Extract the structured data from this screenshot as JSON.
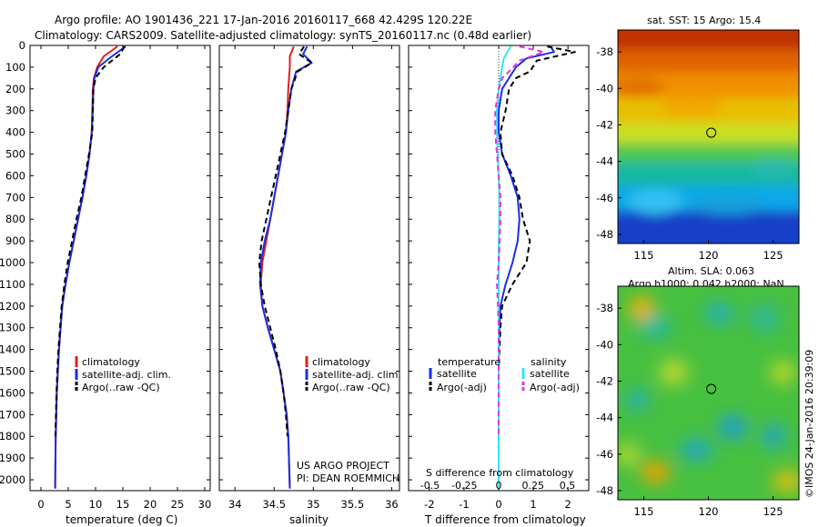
{
  "header": {
    "line1": "Argo profile: AO 1901436_221 17-Jan-2016 20160117_668 42.429S 120.22E",
    "line2": "Climatology: CARS2009. Satellite-adjusted climatology: synTS_20160117.nc (0.48d earlier)"
  },
  "credits": {
    "project": "US ARGO PROJECT",
    "pi": "PI: DEAN ROEMMICH",
    "imos": "©IMOS 24-Jan-2016 20:39:09"
  },
  "colors": {
    "climatology": "#e0201a",
    "satellite": "#1a2ee6",
    "argo": "#000000",
    "satellite_s": "#33e6f0",
    "argo_s": "#e633e0"
  },
  "chart_data": [
    {
      "id": "temperature",
      "type": "line",
      "xlabel": "temperature (deg C)",
      "ylabel": "",
      "xlim": [
        -2,
        31
      ],
      "ylim": [
        2050,
        0
      ],
      "xticks": [
        0,
        5,
        10,
        15,
        20,
        25,
        30
      ],
      "yticks": [
        0,
        100,
        200,
        300,
        400,
        500,
        600,
        700,
        800,
        900,
        1000,
        1100,
        1200,
        1300,
        1400,
        1500,
        1600,
        1700,
        1800,
        1900,
        2000
      ],
      "legend": [
        "climatology",
        "satellite-adj. clim.",
        "Argo(..raw -QC)"
      ],
      "series": [
        {
          "name": "climatology",
          "style": "solid",
          "color": "#e0201a",
          "x": [
            14.0,
            11.5,
            10.3,
            9.7,
            9.5,
            9.4,
            9.3,
            8.9,
            8.3,
            7.6,
            6.8,
            6.0,
            5.2,
            4.5,
            3.9,
            3.6,
            3.3,
            3.1,
            2.9,
            2.8,
            2.7,
            2.6
          ],
          "y": [
            5,
            50,
            100,
            150,
            200,
            300,
            400,
            500,
            600,
            700,
            800,
            900,
            1000,
            1100,
            1200,
            1300,
            1400,
            1500,
            1600,
            1700,
            1800,
            2040
          ]
        },
        {
          "name": "satellite-adj. clim.",
          "style": "solid",
          "color": "#1a2ee6",
          "x": [
            15.5,
            13.0,
            10.5,
            9.8,
            9.6,
            9.5,
            9.3,
            8.9,
            8.3,
            7.6,
            6.8,
            6.0,
            5.2,
            4.5,
            3.9,
            3.6,
            3.3,
            3.1,
            2.9,
            2.8,
            2.7,
            2.6
          ],
          "y": [
            5,
            50,
            100,
            150,
            200,
            300,
            400,
            500,
            600,
            700,
            800,
            900,
            1000,
            1100,
            1200,
            1300,
            1400,
            1500,
            1600,
            1700,
            1800,
            2040
          ]
        },
        {
          "name": "Argo(..raw -QC)",
          "style": "dashed",
          "color": "#000000",
          "x": [
            15.3,
            14.5,
            11.5,
            10.0,
            9.6,
            9.5,
            9.4,
            8.8,
            8.1,
            7.4,
            6.5,
            5.7,
            4.9,
            4.3,
            3.8,
            3.5,
            3.2,
            3.0,
            2.85,
            2.75,
            2.65
          ],
          "y": [
            5,
            40,
            100,
            150,
            200,
            300,
            400,
            500,
            600,
            700,
            800,
            900,
            1000,
            1100,
            1200,
            1300,
            1400,
            1500,
            1600,
            1700,
            1800
          ]
        }
      ]
    },
    {
      "id": "salinity",
      "type": "line",
      "xlabel": "salinity",
      "ylabel": "",
      "xlim": [
        33.8,
        36.1
      ],
      "ylim": [
        2050,
        0
      ],
      "xticks": [
        34,
        34.5,
        35,
        35.5,
        36
      ],
      "xticklabels": [
        "34",
        "34.5",
        "35",
        "35.5",
        "36"
      ],
      "legend": [
        "climatology",
        "satellite-adj. clim.",
        "Argo(..raw -QC)"
      ],
      "series": [
        {
          "name": "climatology",
          "style": "solid",
          "color": "#e0201a",
          "x": [
            34.75,
            34.7,
            34.7,
            34.69,
            34.68,
            34.67,
            34.65,
            34.6,
            34.55,
            34.5,
            34.45,
            34.4,
            34.35,
            34.33,
            34.35,
            34.42,
            34.5,
            34.58,
            34.62,
            34.66,
            34.68,
            34.7
          ],
          "y": [
            5,
            50,
            100,
            150,
            200,
            300,
            400,
            500,
            600,
            700,
            800,
            900,
            1000,
            1100,
            1200,
            1300,
            1400,
            1500,
            1600,
            1700,
            1800,
            2040
          ]
        },
        {
          "name": "satellite-adj. clim.",
          "style": "solid",
          "color": "#1a2ee6",
          "x": [
            34.92,
            34.87,
            34.98,
            34.78,
            34.72,
            34.68,
            34.65,
            34.6,
            34.55,
            34.5,
            34.45,
            34.38,
            34.33,
            34.32,
            34.35,
            34.42,
            34.5,
            34.58,
            34.62,
            34.66,
            34.68,
            34.7
          ],
          "y": [
            5,
            40,
            80,
            120,
            200,
            300,
            400,
            500,
            600,
            700,
            800,
            900,
            1000,
            1100,
            1200,
            1300,
            1400,
            1500,
            1600,
            1700,
            1800,
            2040
          ]
        },
        {
          "name": "Argo(..raw -QC)",
          "style": "dashed",
          "color": "#000000",
          "x": [
            34.88,
            34.82,
            34.98,
            34.8,
            34.72,
            34.68,
            34.64,
            34.58,
            34.52,
            34.46,
            34.4,
            34.34,
            34.31,
            34.33,
            34.38,
            34.45,
            34.52,
            34.58,
            34.62,
            34.65,
            34.67
          ],
          "y": [
            5,
            40,
            80,
            120,
            200,
            300,
            400,
            500,
            600,
            700,
            800,
            900,
            1000,
            1100,
            1200,
            1300,
            1400,
            1500,
            1600,
            1700,
            1800
          ]
        }
      ]
    },
    {
      "id": "difference",
      "type": "line",
      "xlabel": "T difference from climatology",
      "xlabel2": "S difference from climatology",
      "xlim": [
        -2.6,
        2.6
      ],
      "ylim": [
        2050,
        0
      ],
      "xticks": [
        -2,
        -1,
        0,
        1,
        2
      ],
      "xticks2": [
        -0.5,
        -0.25,
        0,
        0.25,
        0.5
      ],
      "xticklabels2": [
        "-0.5",
        "-0.25",
        "0",
        "0.25",
        "0.5"
      ],
      "legend_temperature_title": "temperature",
      "legend_salinity_title": "salinity",
      "legend": [
        "satellite",
        "Argo(-adj)",
        "satellite",
        "Argo(-adj)"
      ],
      "series": [
        {
          "name": "satellite",
          "group": "temperature",
          "style": "solid",
          "color": "#1a2ee6",
          "x": [
            1.5,
            1.6,
            0.8,
            0.5,
            0.3,
            0.1,
            0,
            0,
            0.1,
            0.35,
            0.55,
            0.6,
            0.55,
            0.4,
            0.2,
            0.05,
            0.02,
            0,
            0,
            0,
            0,
            0
          ],
          "y": [
            5,
            30,
            60,
            100,
            150,
            200,
            300,
            400,
            500,
            600,
            700,
            800,
            900,
            1000,
            1100,
            1200,
            1300,
            1400,
            1500,
            1600,
            1800,
            2040
          ]
        },
        {
          "name": "Argo(-adj)",
          "group": "temperature",
          "style": "dashed",
          "color": "#000000",
          "x": [
            1.4,
            2.2,
            1.1,
            0.9,
            0.5,
            0.3,
            0.2,
            0.05,
            0.1,
            0.4,
            0.6,
            0.7,
            0.9,
            0.8,
            0.4,
            0.1,
            0.05,
            0.02,
            0,
            0,
            0
          ],
          "y": [
            5,
            30,
            70,
            120,
            150,
            200,
            300,
            400,
            500,
            600,
            700,
            800,
            900,
            1000,
            1100,
            1200,
            1300,
            1400,
            1500,
            1600,
            1800
          ]
        },
        {
          "name": "satellite",
          "group": "salinity",
          "style": "solid",
          "color": "#33e6f0",
          "x": [
            0.35,
            0.25,
            0.15,
            0.1,
            0.05,
            0,
            -0.05,
            -0.05,
            -0.03,
            0,
            0.02,
            0.02,
            0,
            0,
            0,
            0,
            0,
            0,
            0,
            0,
            0,
            0
          ],
          "y": [
            5,
            30,
            60,
            100,
            150,
            200,
            300,
            400,
            500,
            600,
            700,
            800,
            900,
            1000,
            1100,
            1200,
            1300,
            1400,
            1500,
            1600,
            1800,
            2040
          ]
        },
        {
          "name": "Argo(-adj)",
          "group": "salinity",
          "style": "dashed",
          "color": "#e633e0",
          "x": [
            0.6,
            1.3,
            0.6,
            0.3,
            0.1,
            0,
            -0.1,
            -0.1,
            -0.05,
            0,
            0.05,
            0.05,
            0.03,
            0,
            -0.05,
            -0.02,
            0,
            0,
            0,
            0,
            0
          ],
          "y": [
            5,
            30,
            70,
            120,
            150,
            200,
            300,
            400,
            500,
            600,
            700,
            800,
            900,
            1000,
            1100,
            1200,
            1300,
            1400,
            1500,
            1600,
            1800
          ]
        }
      ]
    },
    {
      "id": "sst-map",
      "type": "heatmap",
      "title": "sat. SST: 15  Argo: 15.4",
      "xlim": [
        113,
        127
      ],
      "ylim": [
        -48.5,
        -36.8
      ],
      "xticks": [
        115,
        120,
        125
      ],
      "yticks": [
        -38,
        -40,
        -42,
        -44,
        -46,
        -48
      ],
      "argo_position": {
        "lon": 120.22,
        "lat": -42.429
      }
    },
    {
      "id": "sla-map",
      "type": "heatmap",
      "title": "Altim. SLA: 0.063",
      "subtitle": "Argo h1000: 0.042  h2000: NaN",
      "xlim": [
        113,
        127
      ],
      "ylim": [
        -48.5,
        -36.8
      ],
      "xticks": [
        115,
        120,
        125
      ],
      "yticks": [
        -38,
        -40,
        -42,
        -44,
        -46,
        -48
      ],
      "argo_position": {
        "lon": 120.22,
        "lat": -42.429
      }
    }
  ]
}
